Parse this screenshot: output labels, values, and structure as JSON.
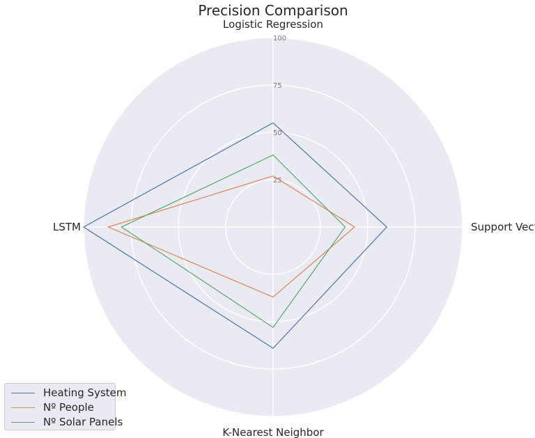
{
  "chart_data": {
    "type": "radar",
    "title": "Precision Comparison",
    "categories": [
      "Logistic Regression",
      "Support Vector Machine",
      "K-Nearest Neighbor",
      "LSTM"
    ],
    "r_ticks": [
      25,
      50,
      75,
      100
    ],
    "r_tick_labels": [
      "25",
      "50",
      "75",
      "100"
    ],
    "rlim": [
      0,
      100
    ],
    "grid": true,
    "legend_position": "lower-left",
    "series": [
      {
        "name": "Heating System",
        "color": "#4c72b0",
        "values": [
          55,
          60,
          64,
          100
        ]
      },
      {
        "name": "Nº People",
        "color": "#dd8452",
        "values": [
          27,
          43,
          37,
          87
        ]
      },
      {
        "name": "Nº Solar Panels",
        "color": "#55a868",
        "values": [
          38,
          38,
          53,
          80
        ]
      }
    ]
  }
}
